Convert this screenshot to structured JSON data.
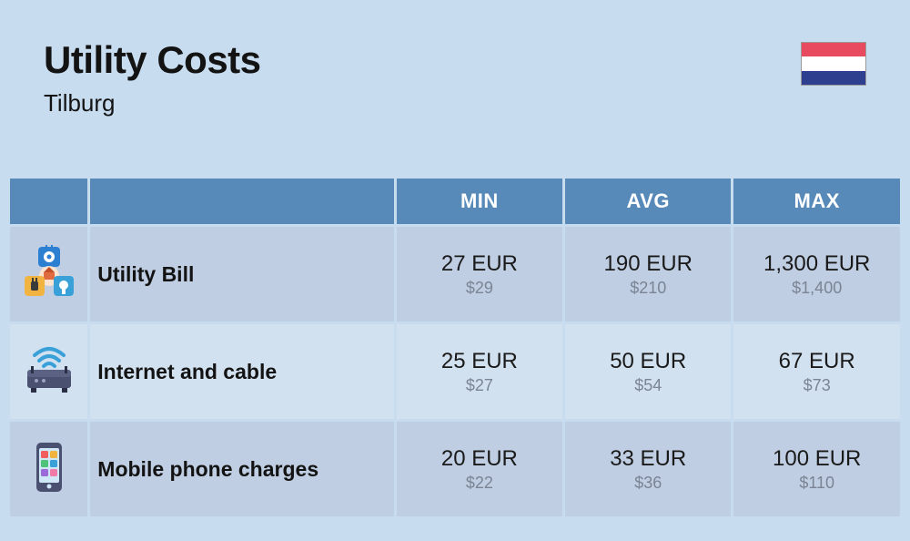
{
  "header": {
    "title": "Utility Costs",
    "subtitle": "Tilburg",
    "flag_colors": [
      "#e84a5f",
      "#ffffff",
      "#2f3f8f"
    ]
  },
  "table": {
    "header_bg": "#5789b9",
    "header_fg": "#ffffff",
    "row_bg_odd": "#bfcee2",
    "row_bg_even": "#d2e1f0",
    "columns": [
      "MIN",
      "AVG",
      "MAX"
    ],
    "rows": [
      {
        "icon": "utility",
        "label": "Utility Bill",
        "min_primary": "27 EUR",
        "min_secondary": "$29",
        "avg_primary": "190 EUR",
        "avg_secondary": "$210",
        "max_primary": "1,300 EUR",
        "max_secondary": "$1,400"
      },
      {
        "icon": "router",
        "label": "Internet and cable",
        "min_primary": "25 EUR",
        "min_secondary": "$27",
        "avg_primary": "50 EUR",
        "avg_secondary": "$54",
        "max_primary": "67 EUR",
        "max_secondary": "$73"
      },
      {
        "icon": "phone",
        "label": "Mobile phone charges",
        "min_primary": "20 EUR",
        "min_secondary": "$22",
        "avg_primary": "33 EUR",
        "avg_secondary": "$36",
        "max_primary": "100 EUR",
        "max_secondary": "$110"
      }
    ]
  }
}
